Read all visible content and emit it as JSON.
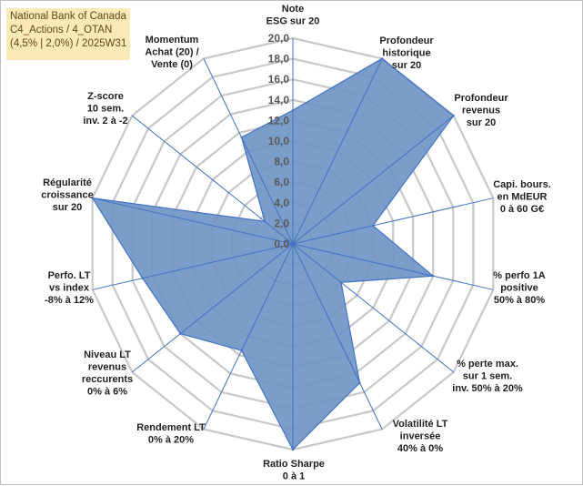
{
  "title_box": {
    "line1": "National Bank of Canada",
    "line2": "C4_Actions / 4_OTAN",
    "line3": "(4,5% | 2,0%) / 2025W31"
  },
  "chart_data": {
    "type": "radar",
    "rlim": [
      0,
      20
    ],
    "ticks": [
      "0,0",
      "2,0",
      "4,0",
      "6,0",
      "8,0",
      "10,0",
      "12,0",
      "14,0",
      "16,0",
      "18,0",
      "20,0"
    ],
    "grid": true,
    "colors": {
      "fill": "#6f95c4",
      "line": "#4472c4",
      "grid": "#c8c8c8",
      "spoke": "#4472c4"
    },
    "axes": [
      {
        "label": [
          "Note",
          "ESG sur 20"
        ],
        "value": 13.0
      },
      {
        "label": [
          "Profondeur",
          "historique",
          "sur 20"
        ],
        "value": 20.0
      },
      {
        "label": [
          "Profondeur",
          "revenus",
          "sur 20"
        ],
        "value": 20.0
      },
      {
        "label": [
          "Capi. bours.",
          "en MdEUR",
          "0 à 60 G€"
        ],
        "value": 8.0
      },
      {
        "label": [
          "% perfo 1A",
          "positive",
          "50% à 80%"
        ],
        "value": 14.0
      },
      {
        "label": [
          "% perte max.",
          "sur 1 sem.",
          "inv. 50% à 20%"
        ],
        "value": 6.0
      },
      {
        "label": [
          "Volatilité LT",
          "inversée",
          "40% à 0%"
        ],
        "value": 15.0
      },
      {
        "label": [
          "Ratio Sharpe",
          "0 à 1"
        ],
        "value": 20.0
      },
      {
        "label": [
          "Rendement LT",
          "0% à 20%"
        ],
        "value": 11.5
      },
      {
        "label": [
          "Niveau LT",
          "revenus",
          "reccurents",
          "0% à 6%"
        ],
        "value": 14.0
      },
      {
        "label": [
          "Perfo. LT",
          "vs index",
          "-8% à 12%"
        ],
        "value": 15.0
      },
      {
        "label": [
          "Régularité",
          "croissance",
          "sur 20"
        ],
        "value": 20.0
      },
      {
        "label": [
          "Z-score",
          "10 sem.",
          "inv. 2 à -2"
        ],
        "value": 3.5
      },
      {
        "label": [
          "Momentum",
          "Achat (20) /",
          "Vente (0)"
        ],
        "value": 11.5
      }
    ]
  }
}
